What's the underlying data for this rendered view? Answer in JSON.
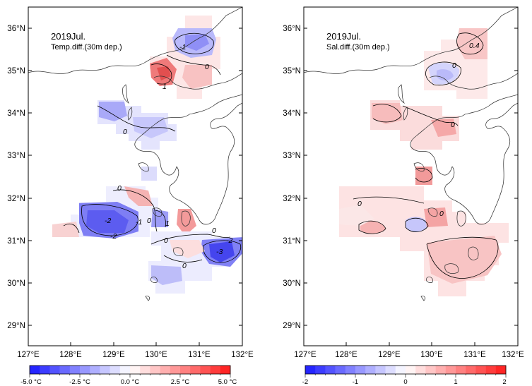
{
  "panels": [
    {
      "id": "temp",
      "title": "2019Jul.",
      "subtitle": "Temp.diff.(30m dep.)",
      "contour_labels": [
        "-1",
        "0",
        "1",
        "0",
        "0",
        "-2",
        "-2",
        "-1",
        "0",
        "1",
        "0",
        "0",
        "-2",
        "-3",
        "0"
      ]
    },
    {
      "id": "sal",
      "title": "2019Jul.",
      "subtitle": "Sal.diff.(30m dep.)",
      "contour_labels": [
        "0.4",
        "0",
        "0",
        "0",
        "0"
      ]
    }
  ],
  "axes": {
    "lon_ticks": [
      "127°E",
      "128°E",
      "129°E",
      "130°E",
      "131°E",
      "132°E"
    ],
    "lat_ticks": [
      "36°N",
      "35°N",
      "34°N",
      "33°N",
      "32°N",
      "31°N",
      "30°N",
      "29°N"
    ]
  },
  "colorbars": [
    {
      "id": "temp",
      "labels": [
        "-5.0 °C",
        "-2.5 °C",
        "0.0 °C",
        "2.5 °C",
        "5.0 °C"
      ],
      "range": [
        -5,
        5
      ]
    },
    {
      "id": "sal",
      "labels": [
        "-2",
        "-1",
        "0",
        "1",
        "2"
      ],
      "range": [
        -2,
        2
      ]
    }
  ],
  "colors": {
    "negative": "#1a1aff",
    "neutral": "#ffffff",
    "positive": "#ff1a1a",
    "coast": "#333333",
    "frame": "#000000"
  }
}
